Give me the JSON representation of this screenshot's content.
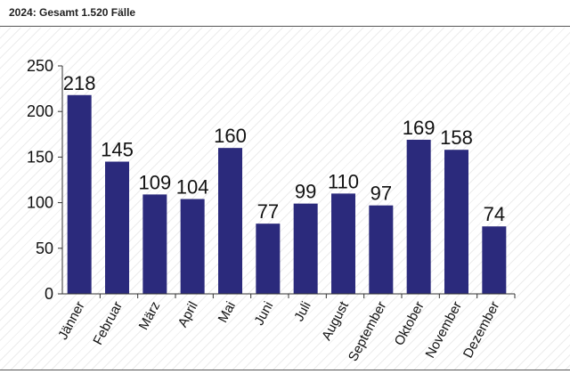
{
  "header": {
    "title": "2024: Gesamt 1.520 Fälle"
  },
  "colors": {
    "bar": "#2b2a7c",
    "axis": "#333333",
    "grid": "#dcdcdc"
  },
  "chart_data": {
    "type": "bar",
    "title": "2024: Gesamt 1.520 Fälle",
    "categories": [
      "Jänner",
      "Februar",
      "März",
      "April",
      "Mai",
      "Juni",
      "Juli",
      "August",
      "September",
      "Oktober",
      "November",
      "Dezember"
    ],
    "values": [
      218,
      145,
      109,
      104,
      160,
      77,
      99,
      110,
      97,
      169,
      158,
      74
    ],
    "ylim": [
      0,
      250
    ],
    "yticks": [
      0,
      50,
      100,
      150,
      200,
      250
    ],
    "xlabel": "",
    "ylabel": "",
    "data_labels": true,
    "grid": false,
    "legend": "none"
  }
}
